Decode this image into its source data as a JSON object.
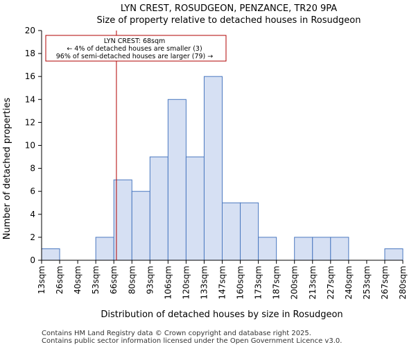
{
  "colors": {
    "bar_fill": "#d6e0f3",
    "bar_stroke": "#4a78c0",
    "marker": "#b20000",
    "annotation_border": "#b20000",
    "axis": "#000000"
  },
  "chart_data": {
    "type": "bar",
    "title": "LYN CREST, ROSUDGEON, PENZANCE, TR20 9PA",
    "subtitle": "Size of property relative to detached houses in Rosudgeon",
    "xlabel": "Distribution of detached houses by size in Rosudgeon",
    "ylabel": "Number of detached properties",
    "ylim": [
      0,
      20
    ],
    "yticks": [
      0,
      2,
      4,
      6,
      8,
      10,
      12,
      14,
      16,
      18,
      20
    ],
    "bin_edges": [
      13,
      26,
      40,
      53,
      66,
      80,
      93,
      106,
      120,
      133,
      147,
      160,
      173,
      187,
      200,
      213,
      227,
      240,
      253,
      267,
      280
    ],
    "tick_labels": [
      "13sqm",
      "26sqm",
      "40sqm",
      "53sqm",
      "66sqm",
      "80sqm",
      "93sqm",
      "106sqm",
      "120sqm",
      "133sqm",
      "147sqm",
      "160sqm",
      "173sqm",
      "187sqm",
      "200sqm",
      "213sqm",
      "227sqm",
      "240sqm",
      "253sqm",
      "267sqm",
      "280sqm"
    ],
    "values": [
      1,
      0,
      0,
      2,
      7,
      6,
      9,
      14,
      9,
      16,
      5,
      5,
      2,
      0,
      2,
      2,
      2,
      0,
      0,
      1
    ],
    "marker_value": 68,
    "annotation": {
      "line1": "LYN CREST: 68sqm",
      "line2": "← 4% of detached houses are smaller (3)",
      "line3": "96% of semi-detached houses are larger (79) →"
    },
    "grid": false
  },
  "footer": {
    "line1": "Contains HM Land Registry data © Crown copyright and database right 2025.",
    "line2": "Contains public sector information licensed under the Open Government Licence v3.0."
  }
}
